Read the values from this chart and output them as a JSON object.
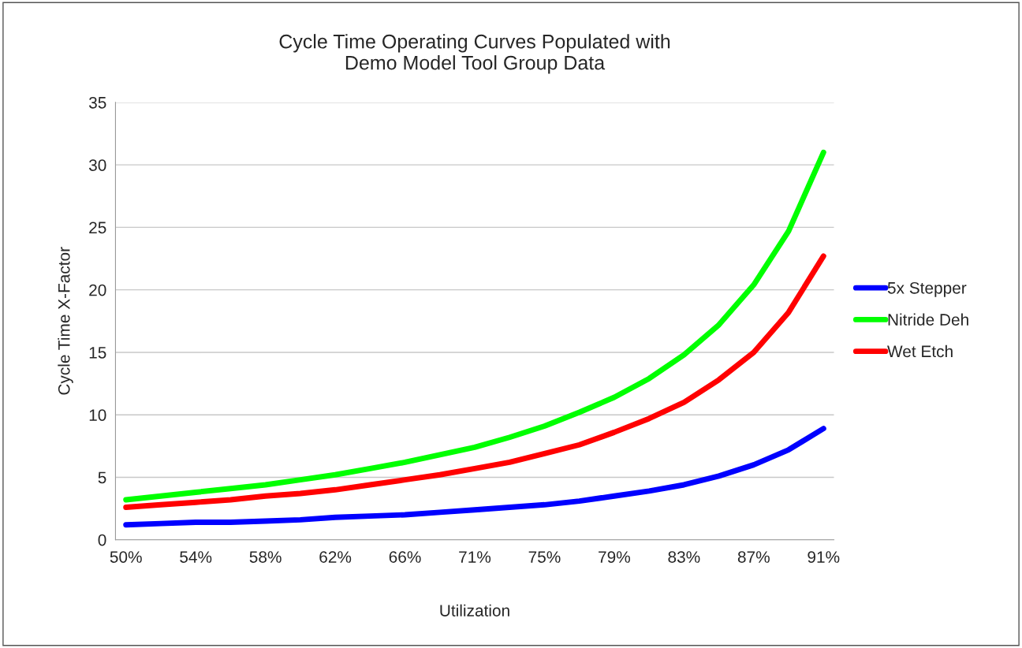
{
  "chart_data": {
    "type": "line",
    "title": "Cycle Time Operating Curves Populated with\nDemo Model Tool Group Data",
    "xlabel": "Utilization",
    "ylabel": "Cycle Time X-Factor",
    "categories": [
      "50%",
      null,
      "54%",
      null,
      "58%",
      null,
      "62%",
      null,
      "66%",
      null,
      "71%",
      null,
      "75%",
      null,
      "79%",
      null,
      "83%",
      null,
      "87%",
      null,
      "91%"
    ],
    "series": [
      {
        "name": "5x Stepper",
        "color": "#0000ff",
        "values": [
          1.2,
          1.3,
          1.4,
          1.4,
          1.5,
          1.6,
          1.8,
          1.9,
          2.0,
          2.2,
          2.4,
          2.6,
          2.8,
          3.1,
          3.5,
          3.9,
          4.4,
          5.1,
          6.0,
          7.2,
          8.9
        ]
      },
      {
        "name": "Nitride Deh",
        "color": "#00ff00",
        "values": [
          3.2,
          3.5,
          3.8,
          4.1,
          4.4,
          4.8,
          5.2,
          5.7,
          6.2,
          6.8,
          7.4,
          8.2,
          9.1,
          10.2,
          11.4,
          12.9,
          14.8,
          17.2,
          20.4,
          24.7,
          31.0
        ]
      },
      {
        "name": "Wet Etch",
        "color": "#ff0000",
        "values": [
          2.6,
          2.8,
          3.0,
          3.2,
          3.5,
          3.7,
          4.0,
          4.4,
          4.8,
          5.2,
          5.7,
          6.2,
          6.9,
          7.6,
          8.6,
          9.7,
          11.0,
          12.8,
          15.0,
          18.2,
          22.7
        ]
      }
    ],
    "ylim": [
      0,
      35
    ],
    "yticks": [
      0,
      5,
      10,
      15,
      20,
      25,
      30,
      35
    ],
    "grid": "y",
    "legend": "right",
    "marker": "none",
    "line_style": "solid"
  }
}
